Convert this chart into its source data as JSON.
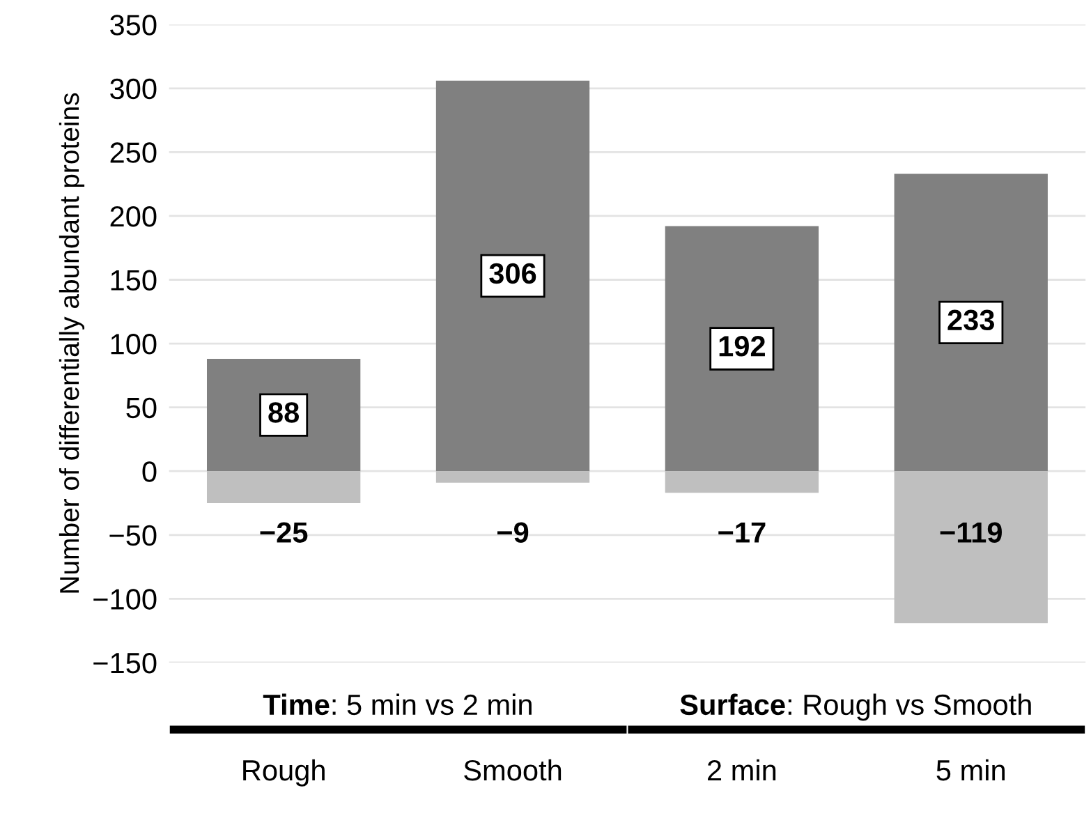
{
  "chart_data": {
    "type": "bar",
    "ylabel": "Number of differentially abundant proteins",
    "categories": [
      "Rough",
      "Smooth",
      "2 min",
      "5 min"
    ],
    "series": [
      {
        "color": "#808080",
        "values": [
          88,
          306,
          192,
          233
        ]
      },
      {
        "color": "#bfbfbf",
        "values": [
          -25,
          -9,
          -17,
          -119
        ]
      }
    ],
    "data_labels": true,
    "stacked": true,
    "ylim": [
      -150,
      350
    ],
    "yticks": [
      {
        "value": -150,
        "label": "−150"
      },
      {
        "value": -100,
        "label": "−100"
      },
      {
        "value": -50,
        "label": "−50"
      },
      0,
      50,
      100,
      150,
      200,
      250,
      300,
      350
    ],
    "grid": "y",
    "legend": false,
    "annotations": [
      "Time: 5 min vs 2 min",
      "Surface: Rough vs Smooth"
    ]
  }
}
